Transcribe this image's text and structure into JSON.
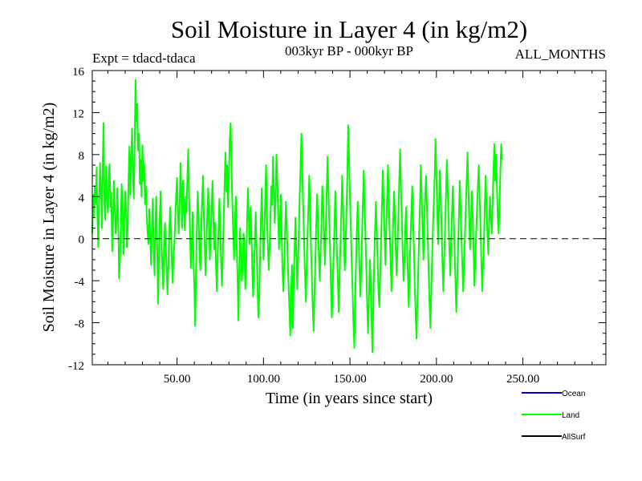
{
  "chart_data": {
    "type": "line",
    "title": "Soil Moisture in Layer 4 (in kg/m2)",
    "subtitle_left": "Expt = tdacd-tdaca",
    "subtitle_center": "003kyr BP - 000kyr BP",
    "subtitle_right": "ALL_MONTHS",
    "xlabel": "Time (in years since start)",
    "ylabel": "Soil Moisture in Layer 4 (in kg/m2)",
    "xlim": [
      1,
      298
    ],
    "ylim": [
      -12,
      16
    ],
    "x_ticks": [
      50,
      100,
      150,
      200,
      250
    ],
    "x_tick_labels": [
      "50.00",
      "100.00",
      "150.00",
      "200.00",
      "250.00"
    ],
    "y_ticks": [
      -12,
      -8,
      -4,
      0,
      4,
      8,
      12,
      16
    ],
    "y_tick_labels": [
      "-12",
      "-8",
      "-4",
      "0",
      "4",
      "8",
      "12",
      "16"
    ],
    "zero_line": "dashed",
    "legend": [
      {
        "label": "Ocean",
        "color": "#0000cc"
      },
      {
        "label": "Land",
        "color": "#00ff00"
      },
      {
        "label": "AllSurf",
        "color": "#000000"
      }
    ],
    "series": [
      {
        "name": "Land",
        "color": "#00ff00",
        "x_start": 1,
        "x_step": 0.5,
        "values": [
          0.5,
          4.2,
          2.1,
          5.0,
          3.4,
          6.8,
          2.0,
          -0.8,
          3.5,
          7.2,
          4.8,
          1.0,
          6.5,
          11.0,
          3.2,
          1.8,
          6.9,
          4.0,
          2.5,
          5.8,
          7.1,
          3.0,
          4.4,
          -1.2,
          2.0,
          5.5,
          3.1,
          0.5,
          1.5,
          4.8,
          2.0,
          -3.8,
          -2.0,
          1.5,
          5.2,
          2.8,
          -1.5,
          2.0,
          4.5,
          3.0,
          -0.8,
          1.2,
          6.0,
          8.8,
          4.2,
          7.5,
          10.5,
          6.0,
          3.8,
          9.0,
          15.1,
          11.2,
          12.8,
          8.4,
          10.0,
          5.2,
          7.5,
          4.0,
          8.9,
          5.5,
          7.1,
          3.3,
          5.0,
          2.0,
          0.5,
          -0.5,
          2.8,
          0.1,
          -2.5,
          1.0,
          3.8,
          -1.2,
          -3.5,
          1.5,
          4.0,
          -0.5,
          -6.2,
          -2.0,
          1.8,
          4.5,
          0.2,
          -2.8,
          -4.8,
          -1.0,
          1.5,
          -0.8,
          -3.0,
          -5.3,
          -2.5,
          0.5,
          3.0,
          1.0,
          -2.0,
          -4.2,
          -1.5,
          -0.5,
          2.0,
          4.2,
          5.8,
          2.5,
          0.5,
          3.0,
          7.2,
          4.5,
          1.0,
          5.5,
          3.2,
          0.8,
          4.0,
          2.5,
          6.0,
          8.5,
          3.8,
          0.5,
          -2.8,
          -1.0,
          2.5,
          -1.8,
          -4.5,
          -8.3,
          -3.0,
          1.5,
          4.5,
          2.0,
          -1.5,
          -3.0,
          0.8,
          3.5,
          6.0,
          2.2,
          -0.5,
          -3.5,
          -1.0,
          2.5,
          4.8,
          1.5,
          -2.0,
          0.5,
          3.0,
          5.5,
          2.0,
          -1.0,
          1.5,
          -2.5,
          -5.0,
          -1.8,
          0.8,
          3.8,
          1.0,
          -2.2,
          -4.5,
          -1.5,
          2.0,
          5.0,
          8.2,
          4.5,
          7.0,
          3.0,
          5.8,
          9.5,
          11.0,
          6.5,
          3.5,
          0.5,
          -2.0,
          1.5,
          4.0,
          -0.5,
          -3.8,
          -7.8,
          -2.5,
          1.0,
          -1.8,
          -4.0,
          -2.0,
          0.5,
          -1.5,
          -4.8,
          -2.5,
          1.5,
          4.8,
          2.0,
          -0.5,
          3.0,
          0.8,
          -2.5,
          -5.5,
          -3.0,
          -0.5,
          2.5,
          -0.8,
          -4.2,
          -7.5,
          -6.0,
          -2.0,
          1.8,
          4.8,
          1.0,
          -2.0,
          0.5,
          3.8,
          7.0,
          2.5,
          -0.5,
          -3.0,
          -1.0,
          2.0,
          5.0,
          3.2,
          7.8,
          4.5,
          1.5,
          3.8,
          8.0,
          5.5,
          2.0,
          -1.0,
          1.8,
          4.2,
          0.5,
          -3.0,
          -5.0,
          -2.5,
          0.8,
          3.5,
          1.0,
          -2.0,
          -4.5,
          -6.8,
          -9.2,
          -5.0,
          -2.5,
          -8.5,
          -4.0,
          -1.0,
          2.0,
          -1.5,
          -4.8,
          -2.0,
          1.0,
          4.5,
          7.5,
          10.0,
          6.0,
          2.8,
          -0.5,
          -3.5,
          -6.0,
          -2.8,
          0.5,
          3.2,
          6.0,
          2.5,
          -1.0,
          -3.8,
          -6.5,
          -8.8,
          -5.0,
          -2.0,
          1.5,
          4.2,
          2.0,
          -1.5,
          -4.0,
          -1.5,
          1.0,
          5.0,
          3.5,
          0.5,
          -2.5,
          0.8,
          4.0,
          7.8,
          5.0,
          2.0,
          -1.0,
          -4.5,
          -7.5,
          -5.0,
          -2.0,
          1.0,
          4.5,
          2.0,
          -1.5,
          -4.0,
          -7.0,
          -3.8,
          -0.5,
          2.5,
          6.0,
          3.0,
          0.0,
          -3.0,
          -0.5,
          2.8,
          6.0,
          10.8,
          7.5,
          4.0,
          1.0,
          -2.0,
          -4.8,
          -8.0,
          -10.4,
          -6.0,
          -2.5,
          1.0,
          3.5,
          0.5,
          -2.5,
          -5.5,
          -3.0,
          0.5,
          3.5,
          6.5,
          3.0,
          0.0,
          -3.0,
          -6.5,
          -9.0,
          -5.5,
          -2.0,
          -4.0,
          -7.5,
          -10.8,
          -6.5,
          -2.5,
          0.5,
          3.5,
          0.8,
          -2.0,
          -5.0,
          -6.5,
          -3.5,
          0.0,
          3.0,
          6.5,
          3.5,
          0.5,
          -2.5,
          1.0,
          4.0,
          7.0,
          3.5,
          0.5,
          -2.0,
          -5.0,
          -2.0,
          1.5,
          4.5,
          2.0,
          -1.0,
          -3.5,
          -1.0,
          2.0,
          5.5,
          8.5,
          5.0,
          2.0,
          -1.5,
          -4.0,
          -2.0,
          1.0,
          3.0,
          -0.5,
          -3.5,
          -6.5,
          -3.0,
          0.0,
          2.5,
          5.0,
          2.0,
          -1.0,
          -4.5,
          -7.5,
          -9.5,
          -6.0,
          -3.0,
          0.5,
          3.5,
          7.0,
          4.0,
          1.0,
          -2.0,
          1.5,
          4.0,
          6.0,
          3.0,
          0.0,
          -3.0,
          -6.0,
          -8.5,
          -5.0,
          -2.0,
          1.0,
          3.5,
          6.0,
          9.5,
          6.0,
          2.5,
          -0.5,
          3.0,
          6.5,
          4.0,
          1.0,
          -2.5,
          -5.0,
          -2.0,
          1.0,
          4.0,
          7.5,
          5.0,
          2.0,
          -1.0,
          -3.5,
          -0.5,
          2.5,
          5.0,
          2.0,
          -1.0,
          -4.0,
          -7.0,
          -4.0,
          -1.0,
          2.0,
          5.5,
          3.0,
          0.0,
          -2.5,
          -5.0,
          -2.0,
          0.5,
          3.0,
          5.5,
          8.2,
          4.5,
          1.5,
          -1.0,
          1.5,
          4.5,
          2.0,
          -1.5,
          -4.5,
          -2.0,
          0.5,
          3.0,
          5.0,
          7.0,
          4.0,
          1.0,
          -2.0,
          -5.0,
          -2.5,
          0.0,
          3.5,
          6.0,
          3.0,
          0.5,
          -1.5,
          1.5,
          4.0,
          2.0,
          0.5,
          3.5,
          6.5,
          9.0,
          5.5,
          8.0,
          5.0,
          2.0,
          0.5,
          3.5,
          6.5,
          9.0,
          7.5
        ]
      }
    ]
  }
}
